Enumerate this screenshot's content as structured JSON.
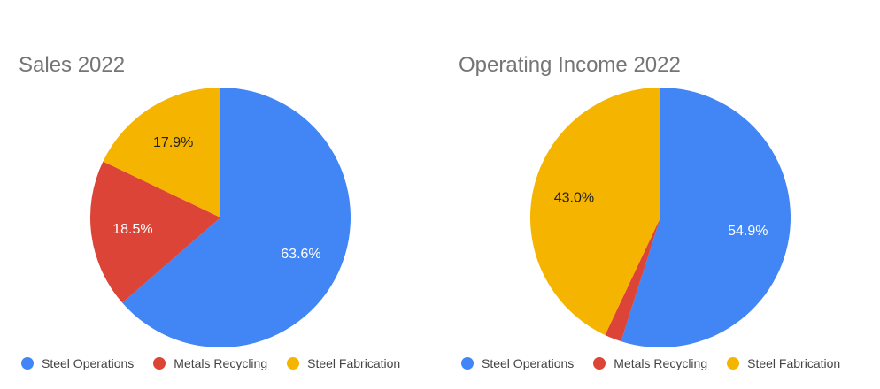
{
  "chart_data": [
    {
      "type": "pie",
      "title": "Sales 2022",
      "categories": [
        "Steel Operations",
        "Metals Recycling",
        "Steel Fabrication"
      ],
      "values": [
        63.6,
        18.5,
        17.9
      ],
      "labels": [
        "63.6%",
        "18.5%",
        "17.9%"
      ],
      "colors": [
        "#4285f4",
        "#db4437",
        "#f4b400"
      ],
      "label_colors": [
        "#ffffff",
        "#ffffff",
        "#212121"
      ],
      "legend": "bottom"
    },
    {
      "type": "pie",
      "title": "Operating Income 2022",
      "categories": [
        "Steel Operations",
        "Metals Recycling",
        "Steel Fabrication"
      ],
      "values": [
        54.9,
        2.1,
        43.0
      ],
      "labels": [
        "54.9%",
        "",
        "43.0%"
      ],
      "colors": [
        "#4285f4",
        "#db4437",
        "#f4b400"
      ],
      "label_colors": [
        "#ffffff",
        "#ffffff",
        "#212121"
      ],
      "legend": "bottom"
    }
  ]
}
